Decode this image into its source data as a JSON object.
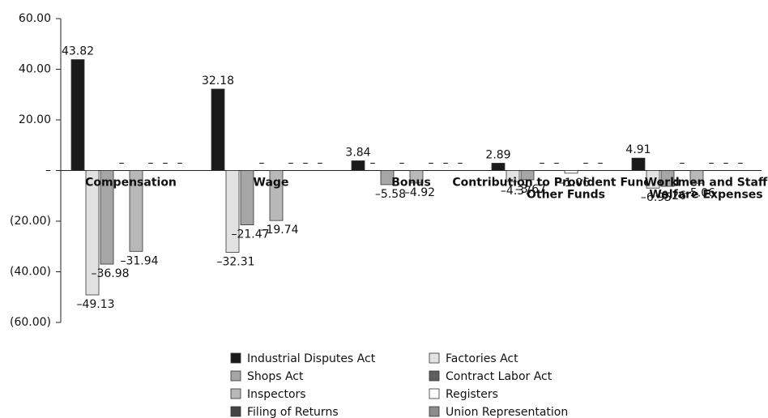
{
  "chart_data": {
    "type": "bar",
    "categories": [
      "Compensation",
      "Wage",
      "Bonus",
      "Contribution to Provident Fund and Other Funds",
      "Workmen and Staff Welfare Expenses"
    ],
    "series": [
      {
        "name": "Industrial Disputes Act",
        "color": "#1a1a1a",
        "values": [
          43.82,
          32.18,
          3.84,
          2.89,
          4.91
        ],
        "value_labels": [
          "43.82",
          "32.18",
          "3.84",
          "2.89",
          "4.91"
        ]
      },
      {
        "name": "Factories Act",
        "color": "#e2e2e2",
        "values": [
          -49.13,
          -32.31,
          0,
          -4.37,
          -6.95
        ],
        "value_labels": [
          "–49.13",
          "–32.31",
          "–",
          "–4.37",
          "–6.95"
        ]
      },
      {
        "name": "Shops Act",
        "color": "#a6a6a6",
        "values": [
          -36.98,
          -21.47,
          -5.58,
          -3.67,
          -6.26
        ],
        "value_labels": [
          "–36.98",
          "–21.47",
          "–5.58",
          "–3.67",
          "–6.26"
        ]
      },
      {
        "name": "Contract Labor Act",
        "color": "#5e5e5e",
        "values": [
          0,
          0,
          0,
          0,
          0
        ],
        "value_labels": [
          "–",
          "–",
          "–",
          "–",
          "–"
        ]
      },
      {
        "name": "Inspectors",
        "color": "#b8b8b8",
        "values": [
          -31.94,
          -19.74,
          -4.92,
          0,
          -5.06
        ],
        "value_labels": [
          "–31.94",
          "–19.74",
          "–4.92",
          "–",
          "–5.06"
        ]
      },
      {
        "name": "Registers",
        "color": "#ffffff",
        "values": [
          0,
          0,
          0,
          -1.06,
          0
        ],
        "value_labels": [
          "–",
          "–",
          "–",
          "–1.06",
          "–"
        ]
      },
      {
        "name": "Filing of Returns",
        "color": "#444444",
        "values": [
          0,
          0,
          0,
          0,
          0
        ],
        "value_labels": [
          "–",
          "–",
          "–",
          "–",
          "–"
        ]
      },
      {
        "name": "Union Representation",
        "color": "#8c8c8c",
        "values": [
          0,
          0,
          0,
          0,
          0
        ],
        "value_labels": [
          "–",
          "–",
          "–",
          "–",
          "–"
        ]
      }
    ],
    "ylim": [
      -60,
      60
    ],
    "yticks": [
      {
        "value": 60,
        "label": "60.00"
      },
      {
        "value": 40,
        "label": "40.00"
      },
      {
        "value": 20,
        "label": "20.00"
      },
      {
        "value": 0,
        "label": "–"
      },
      {
        "value": -20,
        "label": "(20.00)"
      },
      {
        "value": -40,
        "label": "(40.00)"
      },
      {
        "value": -60,
        "label": "(60.00)"
      }
    ]
  }
}
